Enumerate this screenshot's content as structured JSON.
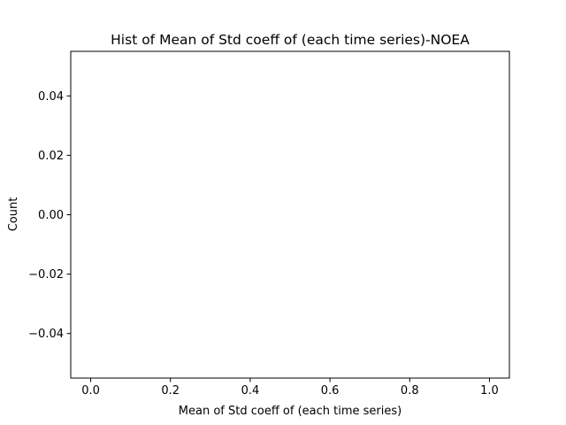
{
  "chart_data": {
    "type": "bar",
    "title": "Hist of Mean of Std coeff of (each time series)-NOEA",
    "xlabel": "Mean of Std coeff of (each time series)",
    "ylabel": "Count",
    "xlim": [
      -0.05,
      1.05
    ],
    "ylim": [
      -0.055,
      0.055
    ],
    "xticks": [
      {
        "value": 0.0,
        "label": "0.0"
      },
      {
        "value": 0.2,
        "label": "0.2"
      },
      {
        "value": 0.4,
        "label": "0.4"
      },
      {
        "value": 0.6,
        "label": "0.6"
      },
      {
        "value": 0.8,
        "label": "0.8"
      },
      {
        "value": 1.0,
        "label": "1.0"
      }
    ],
    "yticks": [
      {
        "value": 0.04,
        "label": "0.04"
      },
      {
        "value": 0.02,
        "label": "0.02"
      },
      {
        "value": 0.0,
        "label": "0.00"
      },
      {
        "value": -0.02,
        "label": "−0.02"
      },
      {
        "value": -0.04,
        "label": "−0.04"
      }
    ],
    "values": [],
    "grid": false
  }
}
